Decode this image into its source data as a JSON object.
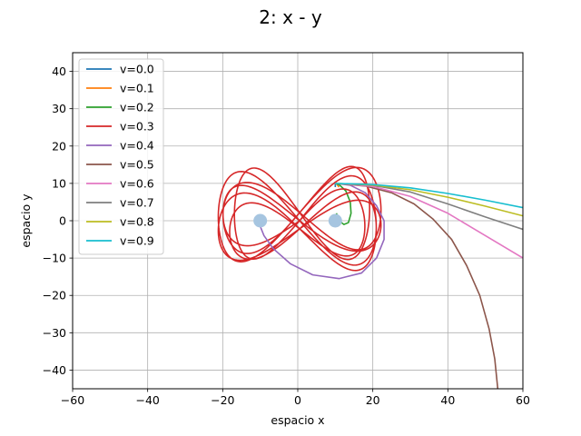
{
  "chart_data": {
    "type": "line",
    "title": "2: x - y",
    "xlabel": "espacio x",
    "ylabel": "espacio y",
    "xlim": [
      -60,
      60
    ],
    "ylim": [
      -45,
      45
    ],
    "xticks": [
      -60,
      -40,
      -20,
      0,
      20,
      40,
      60
    ],
    "yticks": [
      -40,
      -30,
      -20,
      -10,
      0,
      10,
      20,
      30,
      40
    ],
    "grid": true,
    "legend_position": "top-left",
    "bodies": [
      {
        "x": -10,
        "y": 0,
        "color": "#a6c5e0"
      },
      {
        "x": 10,
        "y": 0,
        "color": "#a6c5e0"
      }
    ],
    "series": [
      {
        "name": "v=0.0",
        "color": "#1f77b4",
        "points": [
          [
            10,
            10
          ],
          [
            10,
            9.5
          ],
          [
            10,
            9
          ]
        ]
      },
      {
        "name": "v=0.1",
        "color": "#ff7f0e",
        "points": [
          [
            10,
            10
          ],
          [
            10.5,
            9.7
          ],
          [
            11,
            9
          ]
        ]
      },
      {
        "name": "v=0.2",
        "color": "#2ca02c",
        "points": [
          [
            10,
            10
          ],
          [
            11.2,
            9.5
          ],
          [
            12.8,
            8
          ],
          [
            14,
            5
          ],
          [
            14.2,
            2
          ],
          [
            13.5,
            -0.5
          ],
          [
            12.3,
            -1
          ],
          [
            11,
            0
          ],
          [
            10.3,
            2
          ]
        ]
      },
      {
        "name": "v=0.3",
        "color": "#d62728",
        "points": []
      },
      {
        "name": "v=0.4",
        "color": "#9467bd",
        "points": [
          [
            10,
            10
          ],
          [
            14,
            9.5
          ],
          [
            18,
            7.5
          ],
          [
            21,
            4
          ],
          [
            23,
            0
          ],
          [
            23,
            -5
          ],
          [
            21,
            -10
          ],
          [
            17,
            -14
          ],
          [
            11,
            -15.5
          ],
          [
            4,
            -14.5
          ],
          [
            -2,
            -11.5
          ],
          [
            -6.5,
            -7.5
          ],
          [
            -9,
            -4
          ],
          [
            -10,
            -1.5
          ]
        ]
      },
      {
        "name": "v=0.5",
        "color": "#8c564b",
        "points": [
          [
            10,
            10
          ],
          [
            18,
            9.3
          ],
          [
            25,
            7.5
          ],
          [
            31,
            4.5
          ],
          [
            36,
            0.5
          ],
          [
            41,
            -5
          ],
          [
            45,
            -12
          ],
          [
            48.5,
            -20
          ],
          [
            51,
            -29
          ],
          [
            52.5,
            -37
          ],
          [
            53.3,
            -45
          ]
        ]
      },
      {
        "name": "v=0.6",
        "color": "#e377c2",
        "points": [
          [
            10,
            10
          ],
          [
            20,
            9.2
          ],
          [
            30,
            6.5
          ],
          [
            40,
            2
          ],
          [
            50,
            -4
          ],
          [
            60,
            -10
          ]
        ]
      },
      {
        "name": "v=0.7",
        "color": "#7f7f7f",
        "points": [
          [
            10,
            10
          ],
          [
            20,
            9.5
          ],
          [
            30,
            7.7
          ],
          [
            40,
            4.5
          ],
          [
            50,
            1
          ],
          [
            60,
            -2.3
          ]
        ]
      },
      {
        "name": "v=0.8",
        "color": "#bcbd22",
        "points": [
          [
            10,
            10
          ],
          [
            20,
            9.6
          ],
          [
            30,
            8.3
          ],
          [
            40,
            6.3
          ],
          [
            50,
            3.9
          ],
          [
            60,
            1.3
          ]
        ]
      },
      {
        "name": "v=0.9",
        "color": "#17becf",
        "points": [
          [
            10,
            10
          ],
          [
            20,
            9.7
          ],
          [
            30,
            8.8
          ],
          [
            40,
            7.3
          ],
          [
            50,
            5.5
          ],
          [
            60,
            3.5
          ]
        ]
      }
    ]
  }
}
